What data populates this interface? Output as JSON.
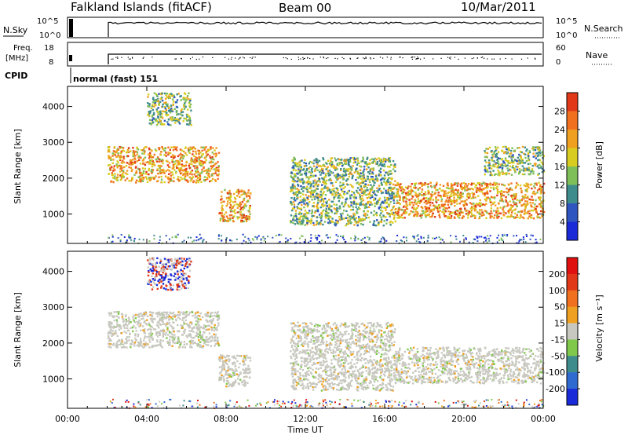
{
  "header": {
    "station": "Falkland Islands (fitACF)",
    "beam": "Beam 00",
    "date": "10/Mar/2011"
  },
  "top_panel": {
    "left_label": "N.Sky",
    "left_ticks": [
      "10^5",
      "10^0"
    ],
    "right_label": "N.Search",
    "right_ticks": [
      "10^5",
      "10^0"
    ]
  },
  "freq_panel": {
    "left_label_line1": "Freq.",
    "left_label_line2": "[MHz]",
    "left_ticks": [
      "18",
      "8"
    ],
    "right_label": "Nave",
    "right_ticks": [
      "60",
      "0"
    ]
  },
  "cpid": {
    "label": "CPID",
    "value": "normal (fast) 151"
  },
  "chart_data": [
    {
      "type": "heatmap",
      "parameter": "Power",
      "ylabel": "Slant Range [km]",
      "ylim": [
        180,
        4560
      ],
      "yticks": [
        "1000",
        "2000",
        "3000",
        "4000"
      ],
      "xlabel": "Time UT",
      "xticks": [
        "00:00",
        "04:00",
        "08:00",
        "12:00",
        "16:00",
        "20:00",
        "00:00"
      ],
      "xlim_hours": [
        0,
        24
      ],
      "colorbar": {
        "label": "Power [dB]",
        "ticks": [
          "4",
          "8",
          "12",
          "16",
          "20",
          "24",
          "28"
        ],
        "colors": [
          "#1a2ad8",
          "#2f55c0",
          "#3f8c8c",
          "#7fbf5a",
          "#d8cc20",
          "#f0a020",
          "#f07020",
          "#e03818"
        ]
      },
      "echo_regions": [
        {
          "t": [
            2.0,
            7.6
          ],
          "range_km": [
            1900,
            2900
          ],
          "level": "high"
        },
        {
          "t": [
            7.6,
            9.2
          ],
          "range_km": [
            800,
            1700
          ],
          "level": "high"
        },
        {
          "t": [
            11.2,
            16.5
          ],
          "range_km": [
            700,
            2600
          ],
          "level": "medium"
        },
        {
          "t": [
            16.5,
            24.0
          ],
          "range_km": [
            900,
            1900
          ],
          "level": "high"
        },
        {
          "t": [
            21.0,
            24.0
          ],
          "range_km": [
            2100,
            2900
          ],
          "level": "medium"
        },
        {
          "t": [
            4.0,
            6.2
          ],
          "range_km": [
            3500,
            4400
          ],
          "level": "medium"
        }
      ]
    },
    {
      "type": "heatmap",
      "parameter": "Velocity",
      "ylabel": "Slant Range [km]",
      "ylim": [
        180,
        4560
      ],
      "yticks": [
        "1000",
        "2000",
        "3000",
        "4000"
      ],
      "xlabel": "Time UT",
      "xticks": [
        "00:00",
        "04:00",
        "08:00",
        "12:00",
        "16:00",
        "20:00",
        "00:00"
      ],
      "xlim_hours": [
        0,
        24
      ],
      "colorbar": {
        "label": "Velocity [m s⁻¹]",
        "ticks": [
          "200",
          "100",
          "50",
          "15",
          "-15",
          "-50",
          "-100",
          "-200"
        ],
        "colors": [
          "#1a2ad8",
          "#2f6ad0",
          "#3f8c8c",
          "#7fc84a",
          "#c8c8c0",
          "#f0a020",
          "#f07020",
          "#e03818",
          "#e01010"
        ]
      },
      "echo_regions": [
        {
          "t": [
            2.0,
            7.6
          ],
          "range_km": [
            1900,
            2900
          ],
          "level": "ground"
        },
        {
          "t": [
            7.6,
            9.2
          ],
          "range_km": [
            800,
            1700
          ],
          "level": "ground"
        },
        {
          "t": [
            11.2,
            16.5
          ],
          "range_km": [
            700,
            2600
          ],
          "level": "ground"
        },
        {
          "t": [
            16.5,
            24.0
          ],
          "range_km": [
            900,
            1900
          ],
          "level": "ground"
        },
        {
          "t": [
            4.0,
            6.2
          ],
          "range_km": [
            3500,
            4400
          ],
          "level": "mixed"
        }
      ]
    }
  ]
}
